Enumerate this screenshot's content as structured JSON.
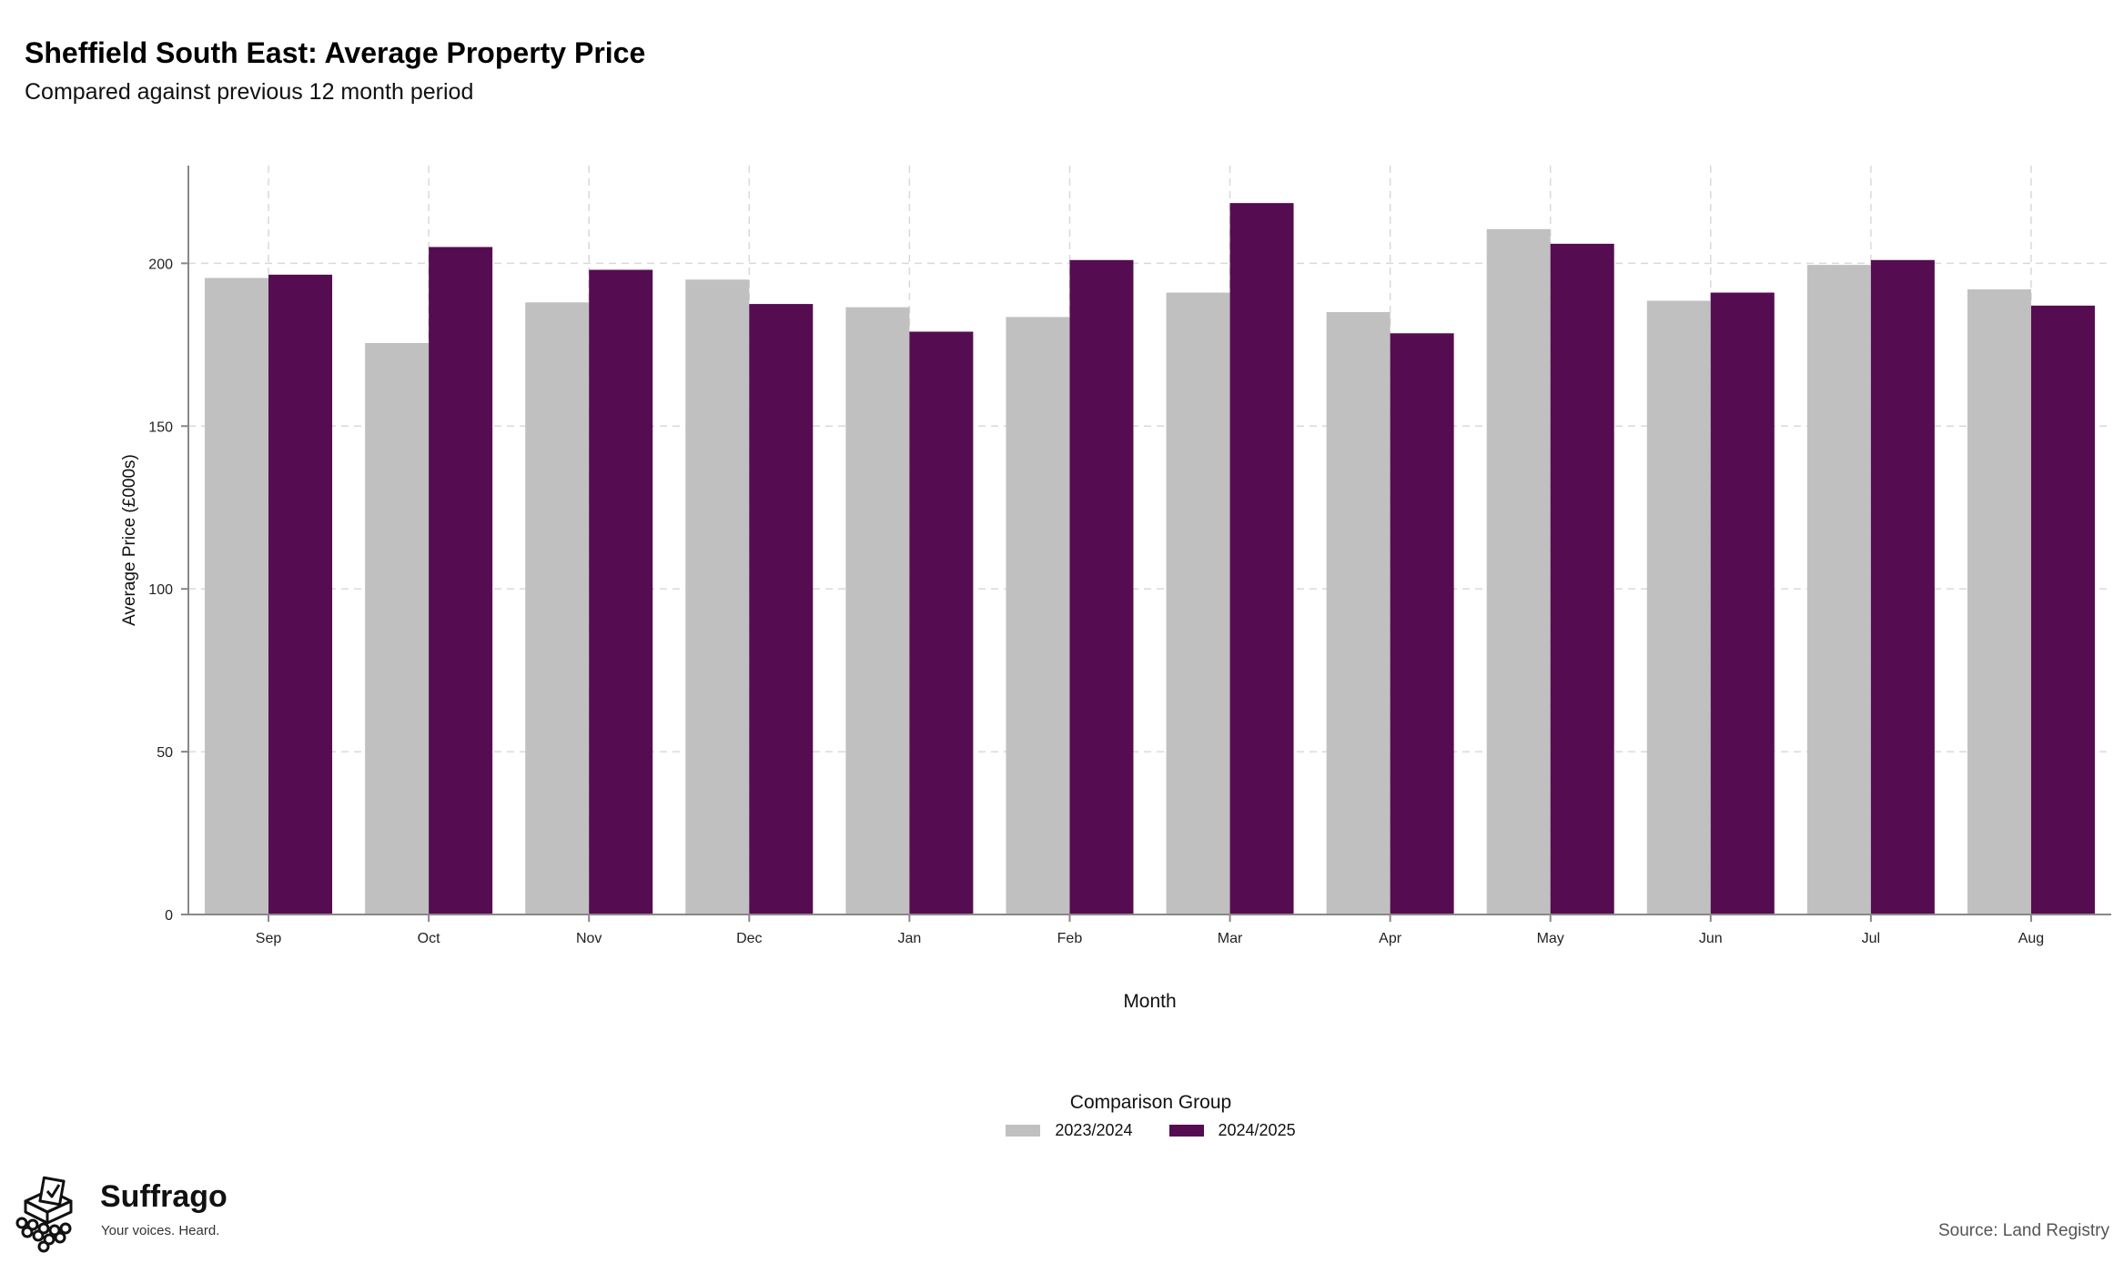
{
  "header": {
    "title": "Sheffield South East: Average Property Price",
    "subtitle": "Compared against previous 12 month period"
  },
  "chart_data": {
    "type": "bar",
    "title": "Sheffield South East: Average Property Price",
    "subtitle": "Compared against previous 12 month period",
    "xlabel": "Month",
    "ylabel": "Average Price (£000s)",
    "categories": [
      "Sep",
      "Oct",
      "Nov",
      "Dec",
      "Jan",
      "Feb",
      "Mar",
      "Apr",
      "May",
      "Jun",
      "Jul",
      "Aug"
    ],
    "series": [
      {
        "name": "2023/2024",
        "color": "#c0c0c0",
        "values": [
          195.5,
          175.5,
          188,
          195,
          186.5,
          183.5,
          191,
          185,
          210.5,
          188.5,
          199.5,
          192
        ]
      },
      {
        "name": "2024/2025",
        "color": "#550c51",
        "values": [
          196.5,
          205,
          198,
          187.5,
          179,
          201,
          218.5,
          178.5,
          206,
          191,
          201,
          187
        ]
      }
    ],
    "ylim": [
      0,
      230
    ],
    "yticks": [
      0,
      50,
      100,
      150,
      200
    ],
    "grid": true,
    "legend_title": "Comparison Group",
    "legend_position": "bottom"
  },
  "brand": {
    "name": "Suffrago",
    "tagline": "Your voices. Heard.",
    "icon": "ballot-box-icon"
  },
  "footer": {
    "source": "Source: Land Registry"
  }
}
